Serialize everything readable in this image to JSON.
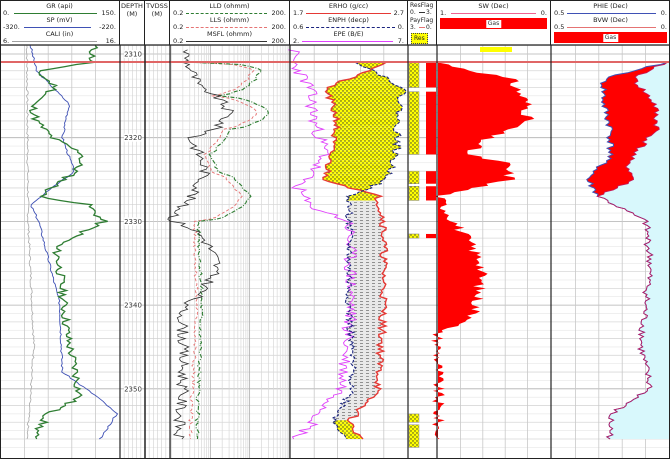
{
  "tracks": {
    "gr_sp_cali": {
      "curves": [
        {
          "name": "GR (api)",
          "left": "0.",
          "right": "150.",
          "color": "#2e7d32",
          "style": "solid"
        },
        {
          "name": "SP (mV)",
          "left": "-320.",
          "right": "-220.",
          "color": "#3f51b5",
          "style": "solid"
        },
        {
          "name": "CALI (in)",
          "left": "6.",
          "right": "16.",
          "color": "#a0a0a0",
          "style": "solid"
        }
      ]
    },
    "depth": {
      "title": "DEPTH",
      "unit": "(M)"
    },
    "tvdss": {
      "title": "TVDSS",
      "unit": "(M)"
    },
    "resistivity": {
      "curves": [
        {
          "name": "LLD (ohmm)",
          "left": "0.2",
          "right": "200.",
          "color": "#2e7d32",
          "style": "dashdot"
        },
        {
          "name": "LLS (ohmm)",
          "left": "0.2",
          "right": "200.",
          "color": "#e57373",
          "style": "dashed"
        },
        {
          "name": "MSFL (ohmm)",
          "left": "0.2",
          "right": "200.",
          "color": "#333333",
          "style": "solid"
        }
      ]
    },
    "neutron_density": {
      "curves": [
        {
          "name": "ERHO (g/cc)",
          "left": "1.7",
          "right": "2.7",
          "color": "#e53935",
          "style": "solid"
        },
        {
          "name": "ENPH (decp)",
          "left": "0.6",
          "right": "0.",
          "color": "#1a237e",
          "style": "dashed"
        },
        {
          "name": "EPE (B/E)",
          "left": "2.",
          "right": "7.",
          "color": "#e040fb",
          "style": "solid"
        }
      ]
    },
    "flags": {
      "curves": [
        {
          "name": "ResFlag",
          "left": "0.",
          "right": "3."
        },
        {
          "name": "PayFlag",
          "left": "3.",
          "right": "0."
        }
      ],
      "legend_label": "Res"
    },
    "sw": {
      "curves": [
        {
          "name": "SW (Dec)",
          "left": "1.",
          "right": "0.",
          "color": "#f06292"
        }
      ],
      "fill_label": "Gas"
    },
    "phie_bvw": {
      "curves": [
        {
          "name": "PHIE (Dec)",
          "left": "0.5",
          "right": "0.",
          "color": "#3f51b5"
        },
        {
          "name": "BVW (Dec)",
          "left": "0.5",
          "right": "0.",
          "color": "#e57373"
        }
      ],
      "fill_label": "Gas"
    }
  },
  "depth_marks": [
    "2310",
    "2320",
    "2330",
    "2340",
    "2350"
  ],
  "chart_data": {
    "type": "line",
    "title": "Well log composite",
    "ylabel": "DEPTH (M)",
    "ylim": [
      2309,
      2357
    ],
    "depth_ticks": [
      2310,
      2320,
      2330,
      2340,
      2350
    ],
    "marker_line_depth": 2311,
    "series": [
      {
        "name": "GR (api)",
        "range": [
          0,
          150
        ],
        "depth": [
          2309,
          2311,
          2312,
          2314,
          2316,
          2318,
          2320,
          2322,
          2324,
          2327,
          2328,
          2330,
          2333,
          2336,
          2340,
          2344,
          2348,
          2351,
          2353,
          2356
        ],
        "values": [
          118,
          115,
          45,
          70,
          40,
          45,
          65,
          105,
          95,
          50,
          110,
          130,
          70,
          75,
          80,
          85,
          95,
          100,
          60,
          40
        ]
      },
      {
        "name": "SP (mV)",
        "range": [
          -320,
          -220
        ],
        "depth": [
          2309,
          2312,
          2316,
          2320,
          2324,
          2328,
          2330,
          2340,
          2348,
          2351,
          2353,
          2356
        ],
        "values": [
          -295,
          -290,
          -262,
          -268,
          -258,
          -295,
          -288,
          -270,
          -268,
          -238,
          -222,
          -236
        ]
      },
      {
        "name": "CALI (in)",
        "range": [
          6,
          16
        ],
        "depth": [
          2309,
          2330,
          2345,
          2356
        ],
        "values": [
          8.2,
          8.3,
          8.8,
          8.2
        ]
      },
      {
        "name": "LLD (ohmm)",
        "scale": "log",
        "range": [
          0.2,
          200
        ],
        "depth": [
          2311,
          2312,
          2315,
          2317,
          2319,
          2322,
          2324,
          2327,
          2330,
          2340,
          2350,
          2356
        ],
        "values": [
          0.8,
          40,
          3,
          60,
          6,
          2,
          3,
          20,
          1.0,
          1.2,
          1.0,
          0.9
        ]
      },
      {
        "name": "LLS (ohmm)",
        "scale": "log",
        "range": [
          0.2,
          200
        ],
        "depth": [
          2311,
          2312,
          2315,
          2317,
          2319,
          2322,
          2324,
          2327,
          2330,
          2340,
          2350,
          2356
        ],
        "values": [
          0.8,
          25,
          2,
          30,
          4,
          1.5,
          2,
          12,
          0.8,
          0.9,
          0.7,
          0.6
        ]
      },
      {
        "name": "MSFL (ohmm)",
        "scale": "log",
        "range": [
          0.2,
          200
        ],
        "depth": [
          2311,
          2314,
          2317,
          2320,
          2324,
          2328,
          2330,
          2335,
          2340,
          2350,
          2356
        ],
        "values": [
          0.5,
          1,
          6,
          0.6,
          1.5,
          0.4,
          0.2,
          3,
          0.4,
          0.4,
          0.3
        ]
      },
      {
        "name": "ERHO (g/cc)",
        "range": [
          1.7,
          2.7
        ],
        "depth": [
          2311,
          2314,
          2318,
          2321,
          2325,
          2327,
          2330,
          2340,
          2350,
          2354,
          2356
        ],
        "values": [
          2.55,
          2.0,
          2.1,
          2.05,
          2.0,
          2.45,
          2.5,
          2.5,
          2.45,
          2.2,
          2.3
        ]
      },
      {
        "name": "ENPH (decp)",
        "range": [
          0.6,
          0
        ],
        "depth": [
          2311,
          2314,
          2318,
          2321,
          2325,
          2327,
          2330,
          2340,
          2350,
          2354,
          2356
        ],
        "values": [
          0.25,
          0.02,
          0.05,
          0.05,
          0.1,
          0.3,
          0.3,
          0.3,
          0.28,
          0.38,
          0.3
        ]
      },
      {
        "name": "EPE (B/E)",
        "range": [
          2,
          7
        ],
        "depth": [
          2311,
          2314,
          2318,
          2322,
          2326,
          2328,
          2330,
          2340,
          2350,
          2354,
          2356
        ],
        "values": [
          2.1,
          2.8,
          3.0,
          3.5,
          2.3,
          2.7,
          4.5,
          4.6,
          4.2,
          3.0,
          2.2
        ]
      },
      {
        "name": "SW (Dec)",
        "range": [
          1,
          0
        ],
        "depth": [
          2311,
          2313,
          2316,
          2318,
          2320,
          2322,
          2323,
          2325,
          2327,
          2330,
          2335,
          2340,
          2342,
          2343,
          2356
        ],
        "values": [
          1,
          0.35,
          0.2,
          0.2,
          0.55,
          0.75,
          0.4,
          0.35,
          1.0,
          0.85,
          0.6,
          0.65,
          0.7,
          1,
          1
        ]
      },
      {
        "name": "PHIE (Dec)",
        "range": [
          0.5,
          0
        ],
        "depth": [
          2311,
          2313,
          2316,
          2319,
          2322,
          2323,
          2325,
          2327,
          2330,
          2335,
          2340,
          2345,
          2350,
          2353,
          2356
        ],
        "values": [
          0.02,
          0.28,
          0.28,
          0.25,
          0.25,
          0.28,
          0.35,
          0.3,
          0.1,
          0.08,
          0.1,
          0.12,
          0.08,
          0.25,
          0.25
        ]
      },
      {
        "name": "BVW (Dec)",
        "range": [
          0.5,
          0
        ],
        "depth": [
          2311,
          2313,
          2316,
          2319,
          2322,
          2323,
          2325,
          2327,
          2330,
          2335,
          2340,
          2345,
          2350,
          2353,
          2356
        ],
        "values": [
          0.02,
          0.15,
          0.06,
          0.05,
          0.15,
          0.18,
          0.15,
          0.3,
          0.1,
          0.08,
          0.1,
          0.12,
          0.08,
          0.25,
          0.25
        ]
      }
    ],
    "flag_intervals": {
      "ResFlag": [
        [
          2311,
          2314
        ],
        [
          2314.5,
          2322
        ],
        [
          2324,
          2325.5
        ],
        [
          2325.8,
          2327.5
        ],
        [
          2331.5,
          2332
        ],
        [
          2353,
          2354
        ],
        [
          2354.3,
          2357
        ]
      ],
      "PayFlag": [
        [
          2311,
          2314
        ],
        [
          2314.5,
          2322
        ],
        [
          2324,
          2325.5
        ],
        [
          2325.8,
          2327.5
        ],
        [
          2331.5,
          2332
        ]
      ]
    }
  }
}
